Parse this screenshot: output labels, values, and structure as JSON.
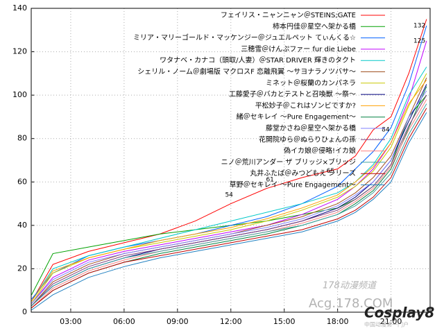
{
  "chart_data": {
    "type": "line",
    "x": [
      0.8,
      2,
      4,
      6,
      8,
      10,
      12,
      14,
      16,
      18,
      19,
      20,
      21,
      22,
      23
    ],
    "xlim": [
      0.78,
      23.2
    ],
    "xticks": [
      {
        "value": 3,
        "label": "03:00"
      },
      {
        "value": 6,
        "label": "06:00"
      },
      {
        "value": 9,
        "label": "09:00"
      },
      {
        "value": 12,
        "label": "12:00"
      },
      {
        "value": 15,
        "label": "15:00"
      },
      {
        "value": 18,
        "label": "18:00"
      },
      {
        "value": 21,
        "label": "21:00"
      }
    ],
    "ylim": [
      0,
      140
    ],
    "yticks": [
      0,
      20,
      40,
      60,
      80,
      100,
      120,
      140
    ],
    "grid": true,
    "legend": "top-right",
    "series": [
      {
        "name": "フェイリス・ニャンニャン＠STEINS;GATE",
        "color": "#ff0000",
        "values": [
          5,
          22,
          28,
          32,
          36,
          42,
          50,
          57,
          62,
          66,
          72,
          84,
          90,
          110,
          135
        ]
      },
      {
        "name": "柿本円佳＠星空へ架かる橋",
        "color": "#00a000",
        "values": [
          8,
          27,
          30,
          33,
          36,
          38,
          40,
          42,
          45,
          48,
          52,
          58,
          68,
          90,
          100
        ]
      },
      {
        "name": "ミリア・マリーゴールド・マッケンジー＠ジュエルペット てぃんくる☆",
        "color": "#0060ff",
        "values": [
          6,
          18,
          26,
          30,
          33,
          36,
          40,
          44,
          50,
          58,
          66,
          74,
          85,
          105,
          132
        ]
      },
      {
        "name": "三穂雪＠けんぷファー fur die Liebe",
        "color": "#c000ff",
        "values": [
          4,
          16,
          24,
          28,
          31,
          34,
          37,
          40,
          45,
          52,
          58,
          66,
          78,
          98,
          125
        ]
      },
      {
        "name": "ワタナベ・カナコ（頭取/人妻）＠STAR DRIVER 輝きのタクト",
        "color": "#00c8c8",
        "values": [
          5,
          20,
          26,
          30,
          34,
          38,
          42,
          46,
          50,
          55,
          60,
          68,
          80,
          100,
          113
        ]
      },
      {
        "name": "シェリル・ノーム＠劇場版 マクロスF 恋離飛翼 ～サヨナラノツバサ～",
        "color": "#a05020",
        "values": [
          3,
          14,
          22,
          27,
          30,
          33,
          36,
          40,
          44,
          50,
          55,
          62,
          72,
          90,
          108
        ]
      },
      {
        "name": "ミネット＠桜蘭のカンパネラ",
        "color": "#c8c800",
        "values": [
          4,
          18,
          25,
          29,
          32,
          35,
          38,
          42,
          47,
          53,
          58,
          65,
          76,
          95,
          110
        ]
      },
      {
        "name": "工藤愛子＠バカとテストと召喚獣 ～祭～",
        "color": "#000080",
        "values": [
          3,
          12,
          20,
          25,
          29,
          32,
          35,
          38,
          42,
          48,
          53,
          60,
          70,
          88,
          105
        ]
      },
      {
        "name": "平松妙子＠これはゾンビですか?",
        "color": "#ffa000",
        "values": [
          5,
          19,
          25,
          29,
          33,
          36,
          39,
          43,
          48,
          54,
          60,
          67,
          78,
          96,
          107
        ]
      },
      {
        "name": "緒＠セキレイ ～Pure Engagement～",
        "color": "#008040",
        "values": [
          2,
          10,
          18,
          23,
          27,
          30,
          33,
          36,
          40,
          45,
          50,
          56,
          66,
          85,
          104
        ]
      },
      {
        "name": "藤堂かさね＠星空へ架かる橋",
        "color": "#8080ff",
        "values": [
          4,
          15,
          23,
          27,
          30,
          33,
          36,
          39,
          43,
          49,
          54,
          60,
          70,
          90,
          102
        ]
      },
      {
        "name": "花開院ゆら＠ぬらりひょんの孫",
        "color": "#804080",
        "values": [
          3,
          13,
          21,
          26,
          29,
          32,
          35,
          38,
          42,
          47,
          52,
          58,
          68,
          86,
          100
        ]
      },
      {
        "name": "偽イカ娘＠侵略!イカ娘",
        "color": "#ff8080",
        "values": [
          2,
          11,
          19,
          24,
          28,
          31,
          34,
          37,
          41,
          46,
          51,
          57,
          67,
          84,
          98
        ]
      },
      {
        "name": "ニノ＠荒川アンダー ザ ブリッジ×ブリッジ",
        "color": "#40a0a0",
        "values": [
          3,
          12,
          20,
          25,
          28,
          31,
          34,
          37,
          40,
          45,
          49,
          55,
          64,
          82,
          96
        ]
      },
      {
        "name": "丸井ふたば＠みつどもえ シリーズ",
        "color": "#c00000",
        "values": [
          2,
          10,
          18,
          23,
          26,
          29,
          32,
          35,
          38,
          43,
          47,
          53,
          62,
          80,
          94
        ]
      },
      {
        "name": "草野＠セキレイ ～Pure Engagement～",
        "color": "#2080c0",
        "values": [
          1,
          8,
          16,
          21,
          25,
          28,
          31,
          34,
          37,
          42,
          46,
          52,
          60,
          78,
          92
        ]
      }
    ],
    "annotations": [
      {
        "x": 22.6,
        "y": 132
      },
      {
        "x": 22.6,
        "y": 125
      },
      {
        "x": 20.7,
        "y": 84
      },
      {
        "x": 17.6,
        "y": 65
      },
      {
        "x": 14.2,
        "y": 61
      },
      {
        "x": 11.9,
        "y": 54
      }
    ],
    "watermark": [
      "178动漫频道",
      "Acg.178.COM",
      "Cosplay8",
      "中国动漫第一门户"
    ]
  }
}
